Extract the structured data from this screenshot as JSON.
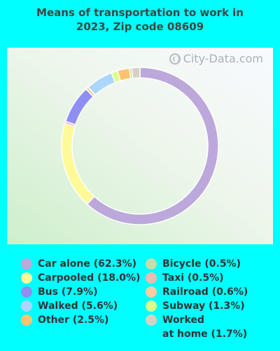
{
  "title_line1": "Means of transportation to work in",
  "title_line2": "2023, Zip code 08609",
  "watermark": "City-Data.com",
  "chart_data": {
    "type": "pie",
    "title": "Means of transportation to work in 2023, Zip code 08609",
    "donut": true,
    "slices": [
      {
        "label": "Car alone (62.3%)",
        "name": "Car alone",
        "value": 62.3,
        "color": "#BCA8DB"
      },
      {
        "label": "Carpooled (18.0%)",
        "name": "Carpooled",
        "value": 18.0,
        "color": "#FFFA98"
      },
      {
        "label": "Taxi (0.5%)",
        "name": "Taxi",
        "value": 0.5,
        "color": "#F4B9B0"
      },
      {
        "label": "Bus (7.9%)",
        "name": "Bus",
        "value": 7.9,
        "color": "#8F8FF2"
      },
      {
        "label": "Railroad (0.6%)",
        "name": "Railroad",
        "value": 0.6,
        "color": "#FCCD9E"
      },
      {
        "label": "Walked (5.6%)",
        "name": "Walked",
        "value": 5.6,
        "color": "#ADD6FF"
      },
      {
        "label": "Subway (1.3%)",
        "name": "Subway",
        "value": 1.3,
        "color": "#D9FF8A"
      },
      {
        "label": "Other (2.5%)",
        "name": "Other",
        "value": 2.5,
        "color": "#FFC36E"
      },
      {
        "label": "Bicycle (0.5%)",
        "name": "Bicycle",
        "value": 0.5,
        "color": "#C8DCA8"
      },
      {
        "label": "Worked at home (1.7%)",
        "name": "Worked at home",
        "value": 1.7,
        "color": "#D6D2C3"
      }
    ],
    "legend_left": [
      {
        "label": "Car alone (62.3%)",
        "color": "#BCA8DB"
      },
      {
        "label": "Carpooled (18.0%)",
        "color": "#FFFA98"
      },
      {
        "label": "Bus (7.9%)",
        "color": "#8F8FF2"
      },
      {
        "label": "Walked (5.6%)",
        "color": "#ADD6FF"
      },
      {
        "label": "Other (2.5%)",
        "color": "#FFC36E"
      }
    ],
    "legend_right": [
      {
        "label": "Bicycle (0.5%)",
        "color": "#C8DCA8"
      },
      {
        "label": "Taxi (0.5%)",
        "color": "#F4B9B0"
      },
      {
        "label": "Railroad (0.6%)",
        "color": "#FCCD9E"
      },
      {
        "label": "Subway (1.3%)",
        "color": "#D9FF8A"
      },
      {
        "label": "Worked at home (1.7%)",
        "color": "#D6D2C3"
      }
    ]
  }
}
